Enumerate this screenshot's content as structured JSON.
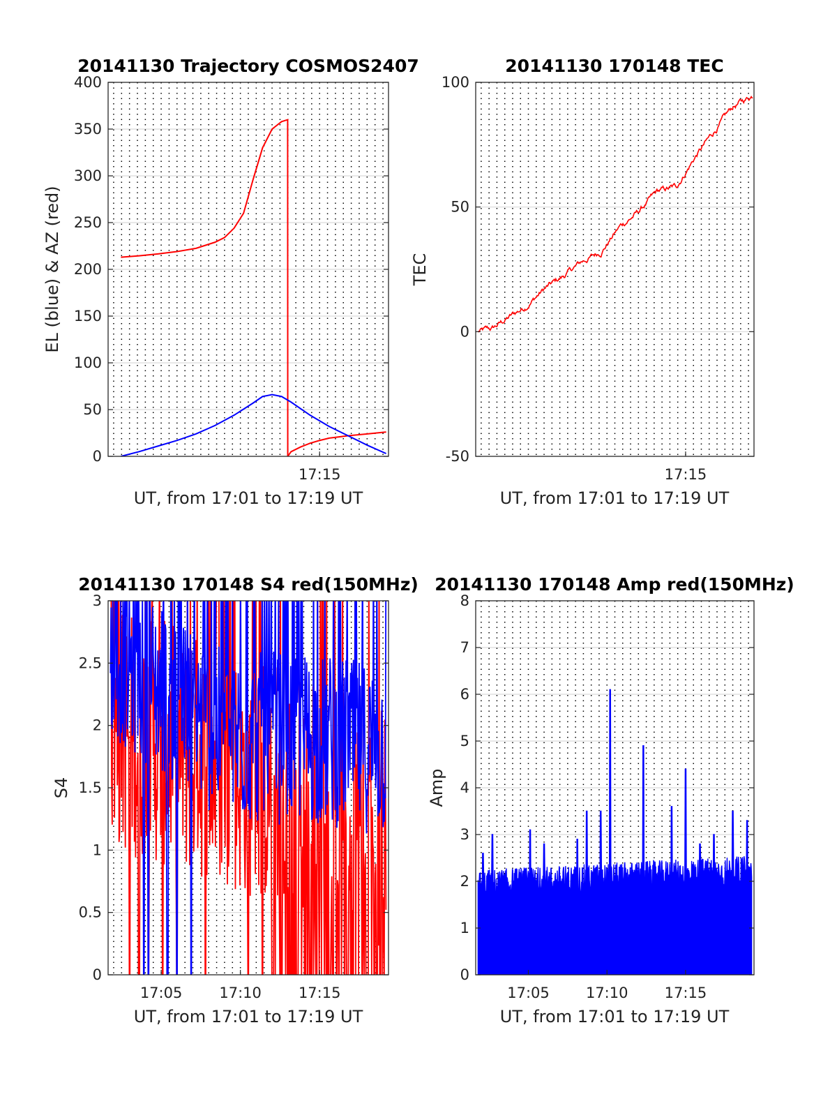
{
  "chart_data": [
    {
      "id": "trajectory",
      "type": "line",
      "title": "20141130 Trajectory COSMOS2407",
      "xlabel": "UT, from 17:01 to 17:19 UT",
      "ylabel": "EL (blue) & AZ (red)",
      "xlim": [
        17.0275,
        17.3225
      ],
      "ylim": [
        0,
        400
      ],
      "yticks": [
        0,
        50,
        100,
        150,
        200,
        250,
        300,
        350,
        400
      ],
      "xticks": [
        {
          "x": 17.25,
          "label": "17:15"
        }
      ],
      "vgrid_step_minutes": 0.5,
      "hgrid": true,
      "series": [
        {
          "color": "#ff0000",
          "x": [
            17.041,
            17.06,
            17.08,
            17.1,
            17.12,
            17.14,
            17.15,
            17.16,
            17.17,
            17.18,
            17.19,
            17.2,
            17.21,
            17.2164,
            17.2165,
            17.22,
            17.23,
            17.24,
            17.25,
            17.26,
            17.28,
            17.3,
            17.32
          ],
          "y": [
            213,
            214.5,
            216.5,
            219,
            222.5,
            229,
            234,
            244,
            260,
            296,
            330,
            350,
            358,
            360,
            0,
            5,
            10,
            14,
            17,
            19.5,
            22,
            24,
            26
          ]
        },
        {
          "color": "#0000ff",
          "x": [
            17.041,
            17.06,
            17.08,
            17.1,
            17.12,
            17.14,
            17.16,
            17.18,
            17.19,
            17.2,
            17.21,
            17.22,
            17.24,
            17.26,
            17.28,
            17.3,
            17.32
          ],
          "y": [
            0,
            5,
            11,
            17,
            24,
            33,
            44,
            57,
            64,
            66,
            64,
            58,
            44,
            32,
            22,
            12,
            3
          ]
        }
      ]
    },
    {
      "id": "tec",
      "type": "line",
      "title": "20141130 170148 TEC",
      "xlabel": "UT, from 17:01 to 17:19 UT",
      "ylabel": "TEC",
      "xlim": [
        17.0275,
        17.3225
      ],
      "ylim": [
        -50,
        100
      ],
      "yticks": [
        -50,
        0,
        50,
        100
      ],
      "xticks": [
        {
          "x": 17.25,
          "label": "17:15"
        }
      ],
      "vgrid_step_minutes": 0.5,
      "hgrid": true,
      "series": [
        {
          "color": "#ff0000",
          "x": [
            17.03,
            17.045,
            17.06,
            17.08,
            17.1,
            17.12,
            17.14,
            17.16,
            17.18,
            17.2,
            17.22,
            17.24,
            17.26,
            17.28,
            17.3,
            17.322
          ],
          "y": [
            0,
            1,
            5,
            10,
            17,
            22,
            28,
            32,
            42,
            48,
            56,
            58,
            70,
            80,
            90,
            95
          ]
        }
      ]
    },
    {
      "id": "s4",
      "type": "line",
      "title": "20141130 170148 S4 red(150MHz)",
      "xlabel": "UT, from 17:01 to 17:19 UT",
      "ylabel": "S4",
      "xlim": [
        17.0275,
        17.3225
      ],
      "ylim": [
        0,
        3
      ],
      "yticks": [
        0,
        0.5,
        1,
        1.5,
        2,
        2.5,
        3
      ],
      "yticklabels": [
        "0",
        "0.5",
        "1",
        "1.5",
        "2",
        "2.5",
        "3"
      ],
      "xticks": [
        {
          "x": 17.08333,
          "label": "17:05"
        },
        {
          "x": 17.16667,
          "label": "17:10"
        },
        {
          "x": 17.25,
          "label": "17:15"
        }
      ],
      "vgrid_step_minutes": 0.5,
      "hgrid": true,
      "series": [
        {
          "color": "#ff0000",
          "x": [
            17.03,
            17.32
          ],
          "y": [
            2.0,
            1.2
          ],
          "noise": 1.0,
          "dropouts": [
            17.05,
            17.06,
            17.07,
            17.085,
            17.1,
            17.13,
            17.175,
            17.19,
            17.2,
            17.21,
            17.22,
            17.24,
            17.26,
            17.28,
            17.3
          ]
        },
        {
          "color": "#0000ff",
          "x": [
            17.03,
            17.1,
            17.15,
            17.2,
            17.25,
            17.32
          ],
          "y": [
            2.6,
            2.2,
            1.9,
            1.9,
            1.9,
            1.8
          ],
          "noise": 0.7,
          "dropouts": [
            17.065,
            17.07,
            17.09,
            17.1,
            17.115
          ]
        }
      ]
    },
    {
      "id": "amp",
      "type": "bar",
      "title": "20141130 170148 Amp red(150MHz)",
      "xlabel": "UT, from 17:01 to 17:19 UT",
      "ylabel": "Amp",
      "xlim": [
        17.0275,
        17.3225
      ],
      "ylim": [
        0,
        8
      ],
      "yticks": [
        0,
        1,
        2,
        3,
        4,
        5,
        6,
        7,
        8
      ],
      "xticks": [
        {
          "x": 17.08333,
          "label": "17:05"
        },
        {
          "x": 17.16667,
          "label": "17:10"
        },
        {
          "x": 17.25,
          "label": "17:15"
        }
      ],
      "vgrid_step_minutes": 0.5,
      "hgrid": true,
      "series": [
        {
          "color": "#0000ff",
          "x": [
            17.03,
            17.32
          ],
          "y": [
            1.9,
            2.2
          ],
          "noise": 0.35,
          "peaks": [
            [
              17.035,
              2.6
            ],
            [
              17.045,
              3.0
            ],
            [
              17.085,
              3.1
            ],
            [
              17.1,
              2.8
            ],
            [
              17.135,
              2.9
            ],
            [
              17.145,
              3.5
            ],
            [
              17.155,
              2.3
            ],
            [
              17.16,
              3.5
            ],
            [
              17.17,
              6.1
            ],
            [
              17.205,
              4.9
            ],
            [
              17.235,
              3.6
            ],
            [
              17.25,
              4.4
            ],
            [
              17.265,
              2.8
            ],
            [
              17.28,
              3.0
            ],
            [
              17.3,
              3.5
            ],
            [
              17.315,
              3.3
            ]
          ]
        }
      ]
    }
  ]
}
